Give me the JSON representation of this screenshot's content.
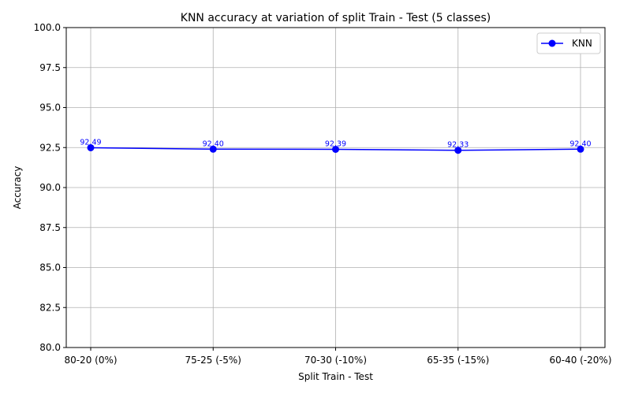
{
  "chart_data": {
    "type": "line",
    "title": "KNN accuracy at variation of split Train - Test (5 classes)",
    "xlabel": "Split Train - Test",
    "ylabel": "Accuracy",
    "categories": [
      "80-20 (0%)",
      "75-25 (-5%)",
      "70-30 (-10%)",
      "65-35 (-15%)",
      "60-40 (-20%)"
    ],
    "series": [
      {
        "name": "KNN",
        "values": [
          92.49,
          92.4,
          92.39,
          92.33,
          92.4
        ],
        "data_labels": [
          "92.49",
          "92.40",
          "92.39",
          "92.33",
          "92.40"
        ],
        "color": "#0000ff",
        "marker": "circle"
      }
    ],
    "ylim": [
      80,
      100
    ],
    "yticks": [
      "80.0",
      "82.5",
      "85.0",
      "87.5",
      "90.0",
      "92.5",
      "95.0",
      "97.5",
      "100.0"
    ],
    "grid": true,
    "legend_position": "top-right"
  }
}
